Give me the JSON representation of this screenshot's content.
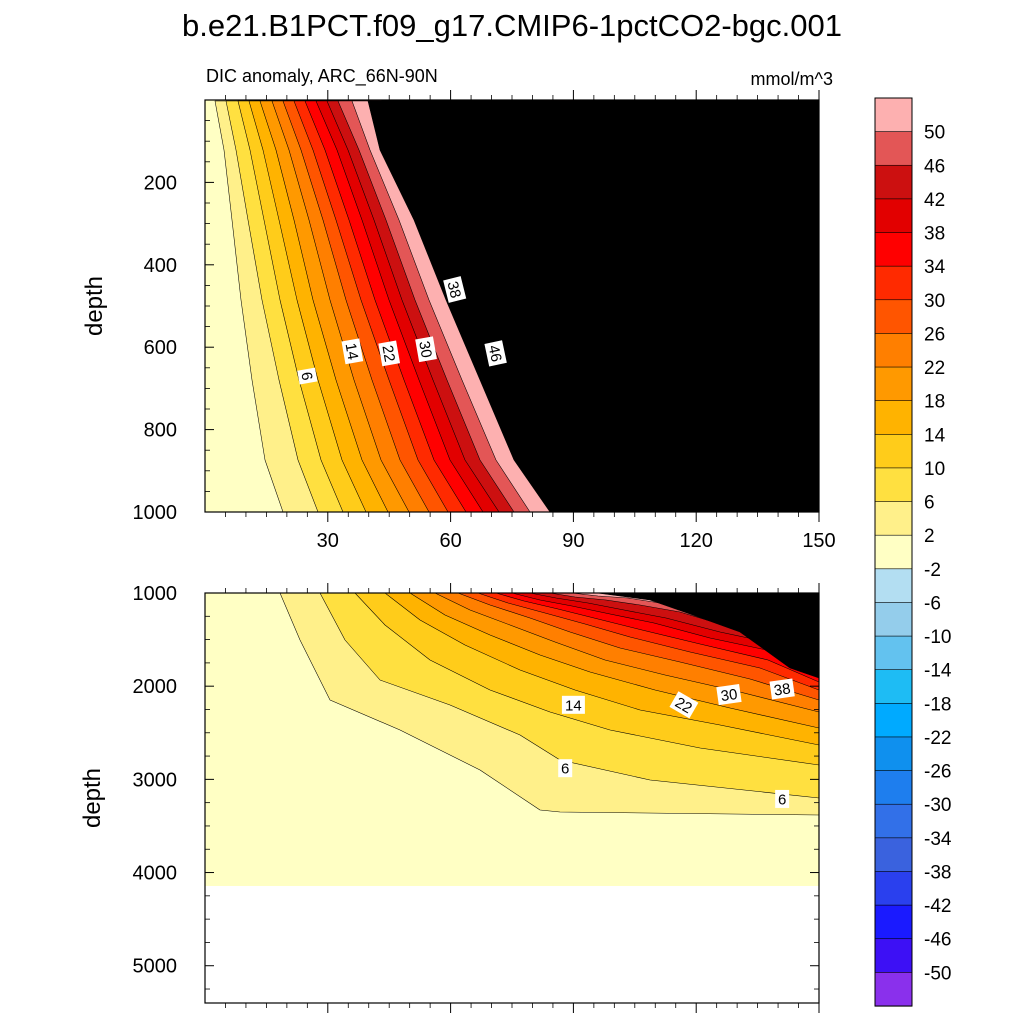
{
  "chart_data": {
    "type": "heatmap",
    "title": "b.e21.B1PCT.f09_g17.CMIP6-1pctCO2-bgc.001",
    "subtitle_left": "DIC anomaly, ARC_66N-90N",
    "subtitle_right": "mmol/m^3",
    "xlim": [
      0,
      150
    ],
    "x_ticks": [
      30,
      60,
      90,
      120,
      150
    ],
    "ylabel": "depth",
    "panels": [
      {
        "name": "upper",
        "ylim": [
          0,
          1000
        ],
        "y_ticks": [
          200,
          400,
          600,
          800,
          1000
        ],
        "contour_labels": [
          {
            "text": "6",
            "x": 25,
            "depth": 670,
            "rot": 80
          },
          {
            "text": "14",
            "x": 36,
            "depth": 610,
            "rot": 80
          },
          {
            "text": "22",
            "x": 45,
            "depth": 615,
            "rot": 80
          },
          {
            "text": "30",
            "x": 54,
            "depth": 605,
            "rot": 80
          },
          {
            "text": "38",
            "x": 61,
            "depth": 460,
            "rot": 76
          },
          {
            "text": "46",
            "x": 71,
            "depth": 615,
            "rot": 78
          }
        ]
      },
      {
        "name": "lower",
        "ylim": [
          1000,
          5400
        ],
        "y_ticks": [
          1000,
          2000,
          3000,
          4000,
          5000
        ],
        "contour_labels": [
          {
            "text": "14",
            "x": 90,
            "depth": 2200,
            "rot": 0
          },
          {
            "text": "6",
            "x": 88,
            "depth": 2880,
            "rot": 0
          },
          {
            "text": "22",
            "x": 117,
            "depth": 2200,
            "rot": 30
          },
          {
            "text": "30",
            "x": 128,
            "depth": 2090,
            "rot": -8
          },
          {
            "text": "38",
            "x": 141,
            "depth": 2030,
            "rot": -8
          },
          {
            "text": "6",
            "x": 141,
            "depth": 3210,
            "rot": 0
          }
        ]
      }
    ],
    "colorbar": {
      "labels": [
        "50",
        "46",
        "42",
        "38",
        "34",
        "30",
        "26",
        "22",
        "18",
        "14",
        "10",
        "6",
        "2",
        "-2",
        "-6",
        "-10",
        "-14",
        "-18",
        "-22",
        "-26",
        "-30",
        "-34",
        "-38",
        "-42",
        "-46",
        "-50"
      ],
      "colors": [
        "#fdb0b0",
        "#e35656",
        "#cc1010",
        "#e20000",
        "#ff0000",
        "#ff2a00",
        "#ff5500",
        "#ff7f00",
        "#ff9900",
        "#ffb300",
        "#ffcc1a",
        "#ffe040",
        "#fff08a",
        "#ffffc4",
        "#b3def2",
        "#94cdeb",
        "#63c2ef",
        "#1ebcf4",
        "#00aaff",
        "#0f90ee",
        "#1e7eee",
        "#3270e8",
        "#3a62de",
        "#2a40ee",
        "#1a1aff",
        "#3d10f5",
        "#8a30ec"
      ]
    }
  }
}
